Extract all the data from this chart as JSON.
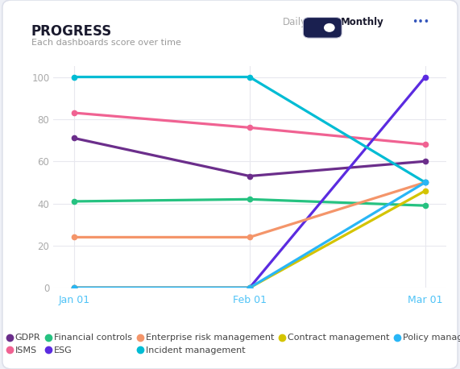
{
  "title": "PROGRESS",
  "subtitle": "Each dashboards score over time",
  "x_labels": [
    "Jan 01",
    "Feb 01",
    "Mar 01"
  ],
  "x_values": [
    0,
    1,
    2
  ],
  "series": [
    {
      "name": "GDPR",
      "color": "#6B2E8B",
      "values": [
        71,
        53,
        60
      ]
    },
    {
      "name": "ISMS",
      "color": "#F06292",
      "values": [
        83,
        76,
        68
      ]
    },
    {
      "name": "Financial controls",
      "color": "#26C281",
      "values": [
        41,
        42,
        39
      ]
    },
    {
      "name": "ESG",
      "color": "#5B2BE0",
      "values": [
        0,
        0,
        100
      ]
    },
    {
      "name": "Enterprise risk management",
      "color": "#F4956A",
      "values": [
        24,
        24,
        50
      ]
    },
    {
      "name": "Incident management",
      "color": "#00BCD4",
      "values": [
        100,
        100,
        50
      ]
    },
    {
      "name": "Contract management",
      "color": "#D4C400",
      "values": [
        0,
        0,
        46
      ]
    },
    {
      "name": "Policy management",
      "color": "#29B6F6",
      "values": [
        0,
        0,
        50
      ]
    }
  ],
  "ylim": [
    0,
    105
  ],
  "yticks": [
    0,
    20,
    40,
    60,
    80,
    100
  ],
  "bg_color": "#eef0f6",
  "card_color": "#ffffff",
  "card_edge_color": "#dde0ea",
  "title_color": "#1a1a2e",
  "subtitle_color": "#999999",
  "axis_tick_color": "#4fc3f7",
  "ytick_color": "#aaaaaa",
  "grid_color": "#e8e8ee",
  "legend_font_size": 8.0,
  "legend_text_color": "#444444",
  "line_width": 2.3,
  "daily_color": "#aaaaaa",
  "monthly_color": "#1a1a2e",
  "toggle_bg": "#1a2050",
  "dots_color": "#3355bb"
}
